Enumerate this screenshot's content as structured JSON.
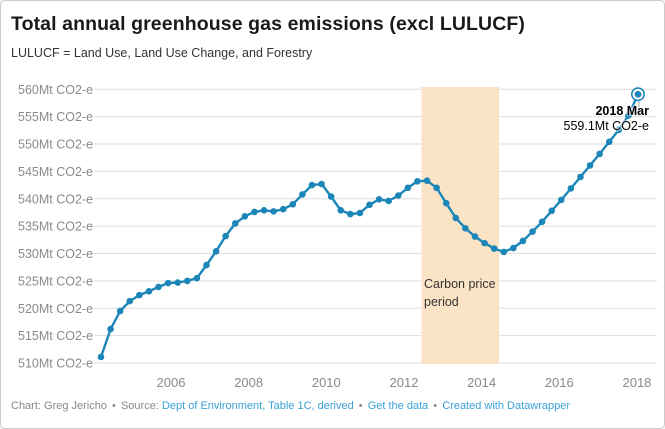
{
  "card": {
    "title": "Total annual greenhouse gas emissions (excl LULUCF)",
    "subtitle": "LULUCF = Land Use, Land Use Change, and Forestry"
  },
  "chart_data": {
    "type": "line",
    "title": "Total annual greenhouse gas emissions (excl LULUCF)",
    "unit": "Mt CO2-e",
    "x": [
      "2004 Mar",
      "2004 Jun",
      "2004 Sep",
      "2004 Dec",
      "2005 Mar",
      "2005 Jun",
      "2005 Sep",
      "2005 Dec",
      "2006 Mar",
      "2006 Jun",
      "2006 Sep",
      "2006 Dec",
      "2007 Mar",
      "2007 Jun",
      "2007 Sep",
      "2007 Dec",
      "2008 Mar",
      "2008 Jun",
      "2008 Sep",
      "2008 Dec",
      "2009 Mar",
      "2009 Jun",
      "2009 Sep",
      "2009 Dec",
      "2010 Mar",
      "2010 Jun",
      "2010 Sep",
      "2010 Dec",
      "2011 Mar",
      "2011 Jun",
      "2011 Sep",
      "2011 Dec",
      "2012 Mar",
      "2012 Jun",
      "2012 Sep",
      "2012 Dec",
      "2013 Mar",
      "2013 Jun",
      "2013 Sep",
      "2013 Dec",
      "2014 Mar",
      "2014 Jun",
      "2014 Sep",
      "2014 Dec",
      "2015 Mar",
      "2015 Jun",
      "2015 Sep",
      "2015 Dec",
      "2016 Mar",
      "2016 Jun",
      "2016 Sep",
      "2016 Dec",
      "2017 Mar",
      "2017 Jun",
      "2017 Sep",
      "2017 Dec",
      "2018 Mar"
    ],
    "values": [
      511.1,
      516.2,
      519.5,
      521.3,
      522.4,
      523.1,
      523.9,
      524.6,
      524.7,
      525.0,
      525.5,
      527.9,
      530.4,
      533.2,
      535.5,
      536.8,
      537.6,
      537.9,
      537.7,
      538.1,
      539.0,
      540.8,
      542.5,
      542.7,
      540.4,
      537.9,
      537.2,
      537.4,
      538.9,
      539.9,
      539.6,
      540.6,
      542.0,
      543.2,
      543.3,
      542.0,
      539.2,
      536.5,
      534.6,
      533.1,
      531.9,
      530.9,
      530.3,
      531.0,
      532.3,
      534.0,
      535.8,
      537.8,
      539.8,
      541.9,
      544.0,
      546.1,
      548.2,
      550.4,
      552.6,
      555.2,
      559.1
    ],
    "x_tick_years": [
      2006,
      2008,
      2010,
      2012,
      2014,
      2016,
      2018
    ],
    "x_tick_labels": [
      "2006",
      "2008",
      "2010",
      "2012",
      "2014",
      "2016",
      "2018"
    ],
    "y_tick_values": [
      510,
      515,
      520,
      525,
      530,
      535,
      540,
      545,
      550,
      555,
      560
    ],
    "y_tick_labels": [
      "510Mt CO2-e",
      "515Mt CO2-e",
      "520Mt CO2-e",
      "525Mt CO2-e",
      "530Mt CO2-e",
      "535Mt CO2-e",
      "540Mt CO2-e",
      "545Mt CO2-e",
      "550Mt CO2-e",
      "555Mt CO2-e",
      "560Mt CO2-e"
    ],
    "ylim": [
      510,
      560
    ],
    "grid": true,
    "legend": false,
    "line_color": "#1c86b9",
    "grid_color": "#dddddd",
    "tick_label_color": "#8a8a8a",
    "highlight_last_point": true,
    "annotation": {
      "title": "2018 Mar",
      "value_label": "559.1Mt CO2-e"
    },
    "range_band": {
      "label": "Carbon price period",
      "x_from_year": 2012.45,
      "x_to_year": 2014.45,
      "color": "#fbe4c6"
    }
  },
  "range_label_text": "Carbon price period",
  "footer": {
    "chart_credit": "Chart: Greg Jericho",
    "source_prefix": "Source:",
    "separator": "•",
    "links": {
      "source": "Dept of Environment, Table 1C, derived",
      "get_data": "Get the data",
      "created_with": "Created with Datawrapper"
    }
  }
}
